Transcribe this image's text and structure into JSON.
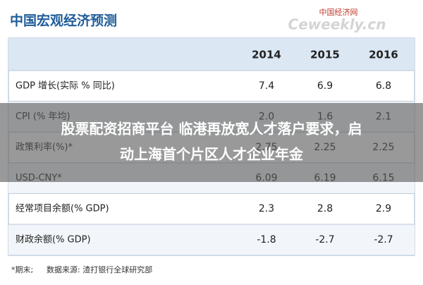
{
  "header": {
    "title": "中国宏观经济预测",
    "logo": "中国经济网",
    "logo_site": "Ceweekly.cn"
  },
  "table": {
    "columns": [
      "2014",
      "2015",
      "2016"
    ],
    "rows": [
      [
        "GDP 增长(实际 % 同比)",
        "7.4",
        "6.9",
        "6.8"
      ],
      [
        "CPI (% 年均)",
        "2.0",
        "1.6",
        "2.1"
      ],
      [
        "政策利率(%)*",
        "2.75",
        "2.25",
        "2.25"
      ],
      [
        "USD-CNY*",
        "6.09",
        "6.19",
        "6.15"
      ],
      [
        "经常项目余额(% GDP)",
        "2.3",
        "2.8",
        "2.9"
      ],
      [
        "财政余额(% GDP)",
        "-1.8",
        "-2.7",
        "-2.7"
      ]
    ]
  },
  "footer": {
    "note": "*期末;",
    "source": "数据来源: 渣打银行全球研究部"
  },
  "overlay": {
    "line1": "股票配资招商平台 临港再放宽人才落户要求，启",
    "line2": "动上海首个片区人才企业年金"
  }
}
